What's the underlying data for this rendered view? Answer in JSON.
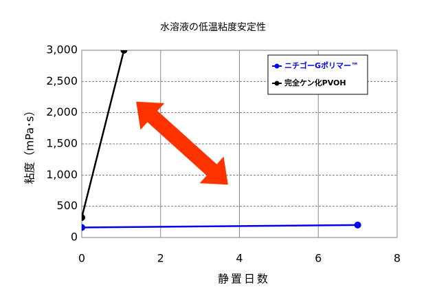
{
  "chart_data": {
    "type": "line",
    "title": "水溶液の低温粘度安定性",
    "x_label": "静置日数",
    "y_label": "粘度（mPa･s）",
    "xlim": [
      0,
      8
    ],
    "xticks": [
      0,
      2,
      4,
      6,
      8
    ],
    "ylim": [
      0,
      3000
    ],
    "yticks": [
      0,
      500,
      {
        "value": 1000,
        "label": "1,000"
      },
      {
        "value": 1500,
        "label": "1,500"
      },
      {
        "value": 2000,
        "label": "2,000"
      },
      {
        "value": 2500,
        "label": "2,500"
      },
      {
        "value": 3000,
        "label": "3,000"
      }
    ],
    "grid": true,
    "legend": "upper right",
    "series": [
      {
        "name": "ニチゴーGポリマー™",
        "color": "#0000ee",
        "x": [
          0,
          7
        ],
        "values": [
          160,
          200
        ]
      },
      {
        "name": "完全ケン化PVOH",
        "color": "#000000",
        "x": [
          0,
          1.07
        ],
        "values": [
          320,
          3000
        ]
      }
    ]
  }
}
